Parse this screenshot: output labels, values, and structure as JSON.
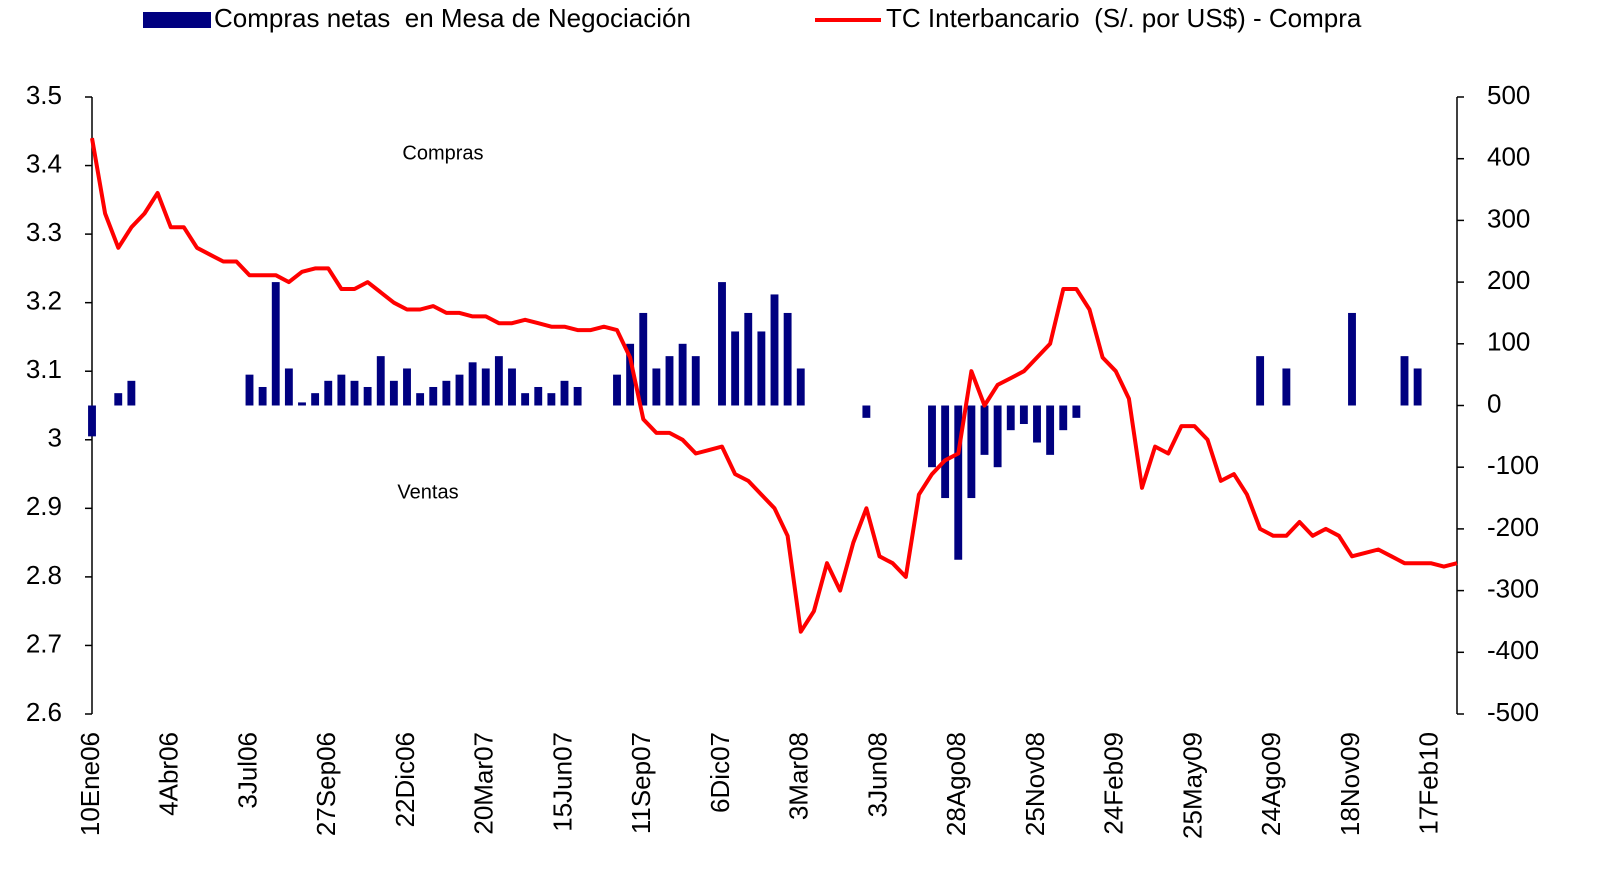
{
  "chart_data": {
    "type": "combo",
    "annotations": [
      "Compras",
      "Ventas"
    ],
    "categories": [
      "10Ene06",
      null,
      null,
      null,
      null,
      null,
      "4Abr06",
      null,
      null,
      null,
      null,
      null,
      "3Jul06",
      null,
      null,
      null,
      null,
      null,
      "27Sep06",
      null,
      null,
      null,
      null,
      null,
      "22Dic06",
      null,
      null,
      null,
      null,
      null,
      "20Mar07",
      null,
      null,
      null,
      null,
      null,
      "15Jun07",
      null,
      null,
      null,
      null,
      null,
      "11Sep07",
      null,
      null,
      null,
      null,
      null,
      "6Dic07",
      null,
      null,
      null,
      null,
      null,
      "3Mar08",
      null,
      null,
      null,
      null,
      null,
      "3Jun08",
      null,
      null,
      null,
      null,
      null,
      "28Ago08",
      null,
      null,
      null,
      null,
      null,
      "25Nov08",
      null,
      null,
      null,
      null,
      null,
      "24Feb09",
      null,
      null,
      null,
      null,
      null,
      "25May09",
      null,
      null,
      null,
      null,
      null,
      "24Ago09",
      null,
      null,
      null,
      null,
      null,
      "18Nov09",
      null,
      null,
      null,
      null,
      null,
      "17Feb10",
      null,
      null
    ],
    "series": [
      {
        "name": "Compras netas  en Mesa de Negociación",
        "type": "bar",
        "axis": "y2",
        "color": "#000080",
        "values": [
          -50,
          0,
          20,
          40,
          0,
          0,
          0,
          0,
          0,
          0,
          0,
          0,
          50,
          30,
          200,
          60,
          5,
          20,
          40,
          50,
          40,
          30,
          80,
          40,
          60,
          20,
          30,
          40,
          50,
          70,
          60,
          80,
          60,
          20,
          30,
          20,
          40,
          30,
          0,
          0,
          50,
          100,
          150,
          60,
          80,
          100,
          80,
          0,
          200,
          120,
          150,
          120,
          180,
          150,
          60,
          0,
          0,
          0,
          0,
          -20,
          0,
          0,
          0,
          0,
          -100,
          -150,
          -250,
          -150,
          -80,
          -100,
          -40,
          -30,
          -60,
          -80,
          -40,
          -20,
          0,
          0,
          0,
          0,
          0,
          0,
          0,
          0,
          0,
          0,
          0,
          0,
          0,
          80,
          0,
          60,
          0,
          0,
          0,
          0,
          150,
          0,
          0,
          0,
          80,
          60,
          0,
          0,
          0
        ]
      },
      {
        "name": "TC Interbancario  (S/. por US$) - Compra",
        "type": "line",
        "axis": "y",
        "color": "#ff0000",
        "values": [
          3.44,
          3.33,
          3.28,
          3.31,
          3.33,
          3.36,
          3.31,
          3.31,
          3.28,
          3.27,
          3.26,
          3.26,
          3.24,
          3.24,
          3.24,
          3.23,
          3.245,
          3.25,
          3.25,
          3.22,
          3.22,
          3.23,
          3.215,
          3.2,
          3.19,
          3.19,
          3.195,
          3.185,
          3.185,
          3.18,
          3.18,
          3.17,
          3.17,
          3.175,
          3.17,
          3.165,
          3.165,
          3.16,
          3.16,
          3.165,
          3.16,
          3.12,
          3.03,
          3.01,
          3.01,
          3.0,
          2.98,
          2.985,
          2.99,
          2.95,
          2.94,
          2.92,
          2.9,
          2.86,
          2.72,
          2.75,
          2.82,
          2.78,
          2.85,
          2.9,
          2.83,
          2.82,
          2.8,
          2.92,
          2.95,
          2.97,
          2.98,
          3.1,
          3.05,
          3.08,
          3.09,
          3.1,
          3.12,
          3.14,
          3.22,
          3.22,
          3.19,
          3.12,
          3.1,
          3.06,
          2.93,
          2.99,
          2.98,
          3.02,
          3.02,
          3.0,
          2.94,
          2.95,
          2.92,
          2.87,
          2.86,
          2.86,
          2.88,
          2.86,
          2.87,
          2.86,
          2.83,
          2.835,
          2.84,
          2.83,
          2.82,
          2.82,
          2.82,
          2.815,
          2.82
        ]
      }
    ],
    "ylim": [
      2.6,
      3.5
    ],
    "yticks": [
      2.6,
      2.7,
      2.8,
      2.9,
      3,
      3.1,
      3.2,
      3.3,
      3.4,
      3.5
    ],
    "y2lim": [
      -500,
      500
    ],
    "y2ticks": [
      -500,
      -400,
      -300,
      -200,
      -100,
      0,
      100,
      200,
      300,
      400,
      500
    ],
    "grid": false,
    "legend": "top"
  }
}
